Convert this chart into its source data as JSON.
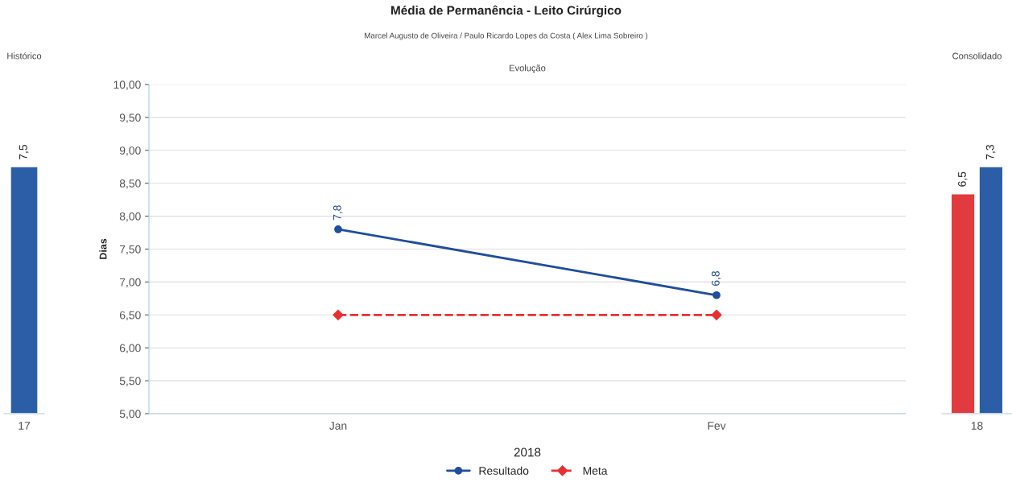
{
  "chart_data": [
    {
      "type": "bar",
      "title": "Histórico",
      "categories": [
        "17"
      ],
      "tick_labels": "x",
      "series": [
        {
          "color": "#2b5ea7",
          "values": [
            7.5
          ],
          "value_labels": [
            "7,5"
          ]
        }
      ]
    },
    {
      "type": "line",
      "title": "Evolução",
      "xlabel": "2018",
      "ylabel": "Dias",
      "categories": [
        "Jan",
        "Fev"
      ],
      "annotations": [
        "Média de Permanência - Leito Cirúrgico",
        "Marcel Augusto de Oliveira / Paulo Ricardo Lopes da Costa ( Alex Lima Sobreiro )"
      ],
      "ylim": [
        5,
        10
      ],
      "yticks": [
        {
          "value": 5,
          "label": "5,00"
        },
        {
          "value": 5.5,
          "label": "5,50"
        },
        {
          "value": 6,
          "label": "6,00"
        },
        {
          "value": 6.5,
          "label": "6,50"
        },
        {
          "value": 7,
          "label": "7,00"
        },
        {
          "value": 7.5,
          "label": "7,50"
        },
        {
          "value": 8,
          "label": "8,00"
        },
        {
          "value": 8.5,
          "label": "8,50"
        },
        {
          "value": 9,
          "label": "9,00"
        },
        {
          "value": 9.5,
          "label": "9,50"
        },
        {
          "value": 10,
          "label": "10,00"
        }
      ],
      "grid": "y",
      "legend": "bottom",
      "series": [
        {
          "name": "Resultado",
          "color": "#1f4e9c",
          "values": [
            7.8,
            6.8
          ],
          "value_labels": [
            "7,8",
            "6,8"
          ],
          "marker": "circle",
          "line_style": "solid"
        },
        {
          "name": "Meta",
          "color": "#e8312f",
          "values": [
            6.5,
            6.5
          ],
          "marker": "diamond",
          "line_style": "dashed"
        }
      ]
    },
    {
      "type": "bar",
      "title": "Consolidado",
      "categories": [
        "18"
      ],
      "tick_labels": "x",
      "series": [
        {
          "color": "#e23b3f",
          "values": [
            6.5
          ],
          "value_labels": [
            "6,5"
          ]
        },
        {
          "color": "#2b5ea7",
          "values": [
            7.3
          ],
          "value_labels": [
            "7,3"
          ]
        }
      ]
    }
  ]
}
